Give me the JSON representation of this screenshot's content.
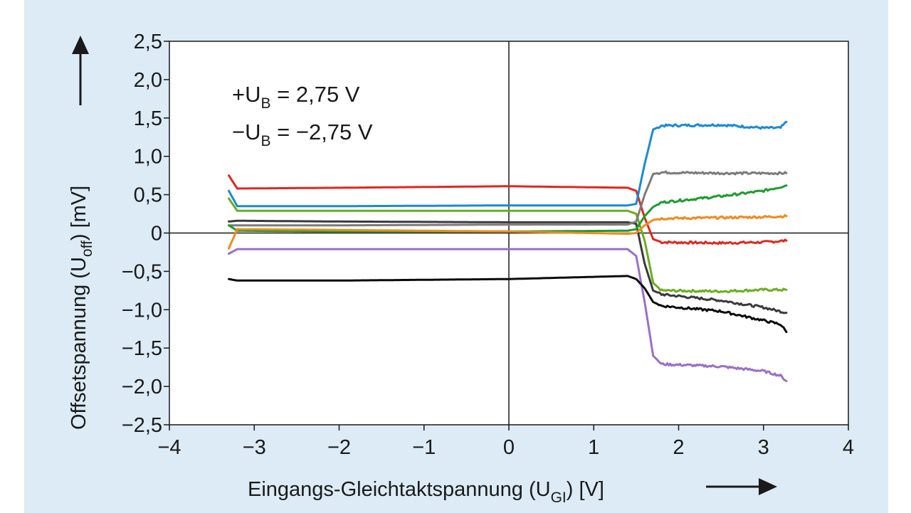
{
  "chart_data": {
    "type": "line",
    "xlabel": {
      "main": "Eingangs-Gleichtaktspannung (U",
      "sub": "GI",
      "tail": ") [V]"
    },
    "ylabel": {
      "main": "Offsetspannung (U",
      "sub": "off",
      "tail": ") [mV]"
    },
    "xlim": [
      -4,
      4
    ],
    "ylim": [
      -2.5,
      2.5
    ],
    "x_ticks": [
      {
        "value": -4,
        "label": "−4"
      },
      {
        "value": -3,
        "label": "−3"
      },
      {
        "value": -2,
        "label": "−2"
      },
      {
        "value": -1,
        "label": "−1"
      },
      {
        "value": 0,
        "label": "0"
      },
      {
        "value": 1,
        "label": "1"
      },
      {
        "value": 2,
        "label": "2"
      },
      {
        "value": 3,
        "label": "3"
      },
      {
        "value": 4,
        "label": "4"
      }
    ],
    "y_ticks": [
      {
        "value": 2.5,
        "label": "2,5"
      },
      {
        "value": 2.0,
        "label": "2,0"
      },
      {
        "value": 1.5,
        "label": "1,5"
      },
      {
        "value": 1.0,
        "label": "1,0"
      },
      {
        "value": 0.5,
        "label": "0,5"
      },
      {
        "value": 0,
        "label": "0"
      },
      {
        "value": -0.5,
        "label": "−0,5"
      },
      {
        "value": -1.0,
        "label": "−1,0"
      },
      {
        "value": -1.5,
        "label": "−1,5"
      },
      {
        "value": -2.0,
        "label": "−2,0"
      },
      {
        "value": -2.5,
        "label": "−2,5"
      }
    ],
    "grid": false,
    "annotations": [
      {
        "pre": "+U",
        "sub": "B",
        "post": " = 2,75 V"
      },
      {
        "pre": "−U",
        "sub": "B",
        "post": " = −2,75 V"
      }
    ],
    "series": [
      {
        "color": "#e0271f",
        "points": [
          [
            -3.3,
            0.75
          ],
          [
            -3.2,
            0.58
          ],
          [
            -2,
            0.59
          ],
          [
            0,
            0.61
          ],
          [
            1.4,
            0.59
          ],
          [
            1.5,
            0.55
          ],
          [
            1.6,
            0.2
          ],
          [
            1.7,
            -0.08
          ],
          [
            1.8,
            -0.12
          ],
          [
            2.5,
            -0.13
          ],
          [
            3.0,
            -0.12
          ],
          [
            3.27,
            -0.1
          ]
        ]
      },
      {
        "color": "#1a8ad4",
        "points": [
          [
            -3.3,
            0.55
          ],
          [
            -3.2,
            0.35
          ],
          [
            -2,
            0.35
          ],
          [
            0,
            0.36
          ],
          [
            1.4,
            0.36
          ],
          [
            1.5,
            0.38
          ],
          [
            1.6,
            0.9
          ],
          [
            1.7,
            1.35
          ],
          [
            1.8,
            1.4
          ],
          [
            2.5,
            1.41
          ],
          [
            3.0,
            1.37
          ],
          [
            3.2,
            1.37
          ],
          [
            3.27,
            1.45
          ]
        ]
      },
      {
        "color": "#6aae1e",
        "points": [
          [
            -3.3,
            0.45
          ],
          [
            -3.2,
            0.29
          ],
          [
            -2,
            0.29
          ],
          [
            0,
            0.29
          ],
          [
            1.4,
            0.29
          ],
          [
            1.5,
            0.25
          ],
          [
            1.6,
            -0.1
          ],
          [
            1.7,
            -0.65
          ],
          [
            1.8,
            -0.75
          ],
          [
            2.5,
            -0.76
          ],
          [
            3.0,
            -0.74
          ],
          [
            3.27,
            -0.74
          ]
        ]
      },
      {
        "color": "#3a3a3a",
        "points": [
          [
            -3.3,
            0.15
          ],
          [
            -3.2,
            0.16
          ],
          [
            -2,
            0.15
          ],
          [
            0,
            0.14
          ],
          [
            1.4,
            0.14
          ],
          [
            1.5,
            0.12
          ],
          [
            1.6,
            -0.4
          ],
          [
            1.7,
            -0.75
          ],
          [
            1.8,
            -0.8
          ],
          [
            2.5,
            -0.88
          ],
          [
            3.0,
            -0.97
          ],
          [
            3.27,
            -1.04
          ]
        ]
      },
      {
        "color": "#7b7b7b",
        "points": [
          [
            -3.3,
            0.1
          ],
          [
            -3.2,
            0.1
          ],
          [
            -2,
            0.1
          ],
          [
            0,
            0.11
          ],
          [
            1.4,
            0.11
          ],
          [
            1.5,
            0.15
          ],
          [
            1.6,
            0.5
          ],
          [
            1.7,
            0.77
          ],
          [
            1.8,
            0.79
          ],
          [
            2.5,
            0.78
          ],
          [
            3.0,
            0.78
          ],
          [
            3.27,
            0.78
          ]
        ]
      },
      {
        "color": "#1d9b2f",
        "points": [
          [
            -3.3,
            0.1
          ],
          [
            -3.2,
            0.03
          ],
          [
            -2,
            0.02
          ],
          [
            0,
            0.02
          ],
          [
            1.4,
            0.03
          ],
          [
            1.5,
            0.05
          ],
          [
            1.6,
            0.22
          ],
          [
            1.7,
            0.34
          ],
          [
            1.8,
            0.4
          ],
          [
            2.5,
            0.48
          ],
          [
            3.0,
            0.55
          ],
          [
            3.27,
            0.62
          ]
        ]
      },
      {
        "color": "#f08a1c",
        "points": [
          [
            -3.3,
            -0.2
          ],
          [
            -3.2,
            0.05
          ],
          [
            -2,
            0.04
          ],
          [
            0,
            0.02
          ],
          [
            1.4,
            -0.01
          ],
          [
            1.5,
            0.0
          ],
          [
            1.6,
            0.1
          ],
          [
            1.7,
            0.17
          ],
          [
            1.8,
            0.19
          ],
          [
            2.5,
            0.2
          ],
          [
            3.0,
            0.21
          ],
          [
            3.27,
            0.22
          ]
        ]
      },
      {
        "color": "#9a6fc8",
        "points": [
          [
            -3.3,
            -0.27
          ],
          [
            -3.2,
            -0.21
          ],
          [
            -2,
            -0.21
          ],
          [
            0,
            -0.21
          ],
          [
            1.4,
            -0.21
          ],
          [
            1.5,
            -0.3
          ],
          [
            1.6,
            -0.9
          ],
          [
            1.7,
            -1.6
          ],
          [
            1.8,
            -1.71
          ],
          [
            2.5,
            -1.74
          ],
          [
            3.0,
            -1.8
          ],
          [
            3.2,
            -1.86
          ],
          [
            3.27,
            -1.93
          ]
        ]
      },
      {
        "color": "#0a0a0a",
        "points": [
          [
            -3.3,
            -0.6
          ],
          [
            -3.2,
            -0.62
          ],
          [
            -2,
            -0.62
          ],
          [
            0,
            -0.6
          ],
          [
            1.4,
            -0.56
          ],
          [
            1.5,
            -0.6
          ],
          [
            1.6,
            -0.72
          ],
          [
            1.7,
            -0.9
          ],
          [
            1.8,
            -0.95
          ],
          [
            2.5,
            -1.02
          ],
          [
            3.0,
            -1.14
          ],
          [
            3.2,
            -1.19
          ],
          [
            3.27,
            -1.29
          ]
        ]
      }
    ]
  }
}
